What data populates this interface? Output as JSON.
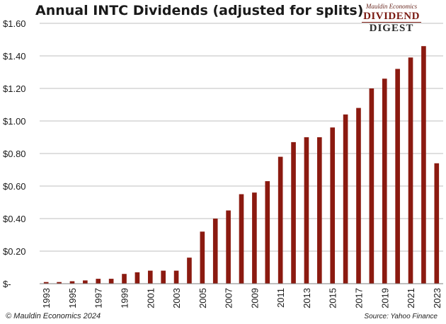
{
  "title": "Annual INTC Dividends (adjusted for splits)",
  "logo": {
    "line1": "Mauldin Economics",
    "line2": "DIVIDEND",
    "line3": "DIGEST"
  },
  "footer": {
    "copyright": "© Mauldin Economics 2024",
    "source": "Source: Yahoo Finance"
  },
  "colors": {
    "bar": "#8b1a10",
    "grid": "#bfbfbf",
    "axis": "#7f7f7f"
  },
  "chart_data": {
    "type": "bar",
    "title": "Annual INTC Dividends (adjusted for splits)",
    "xlabel": "",
    "ylabel": "",
    "ylim": [
      0,
      1.6
    ],
    "y_ticks": [
      0,
      0.2,
      0.4,
      0.6,
      0.8,
      1.0,
      1.2,
      1.4,
      1.6
    ],
    "y_tick_labels": [
      "$-",
      "$0.20",
      "$0.40",
      "$0.60",
      "$0.80",
      "$1.00",
      "$1.20",
      "$1.40",
      "$1.60"
    ],
    "grid": true,
    "categories": [
      "1993",
      "1994",
      "1995",
      "1996",
      "1997",
      "1998",
      "1999",
      "2000",
      "2001",
      "2002",
      "2003",
      "2004",
      "2005",
      "2006",
      "2007",
      "2008",
      "2009",
      "2010",
      "2011",
      "2012",
      "2013",
      "2014",
      "2015",
      "2016",
      "2017",
      "2018",
      "2019",
      "2020",
      "2021",
      "2022",
      "2023"
    ],
    "x_tick_labels_shown": [
      "1993",
      "1995",
      "1997",
      "1999",
      "2001",
      "2003",
      "2005",
      "2007",
      "2009",
      "2011",
      "2013",
      "2015",
      "2017",
      "2019",
      "2021",
      "2023"
    ],
    "values": [
      0.01,
      0.01,
      0.015,
      0.02,
      0.03,
      0.03,
      0.06,
      0.07,
      0.08,
      0.08,
      0.08,
      0.16,
      0.32,
      0.4,
      0.45,
      0.55,
      0.56,
      0.63,
      0.78,
      0.87,
      0.9,
      0.9,
      0.96,
      1.04,
      1.08,
      1.2,
      1.26,
      1.32,
      1.39,
      1.46,
      0.74
    ]
  }
}
